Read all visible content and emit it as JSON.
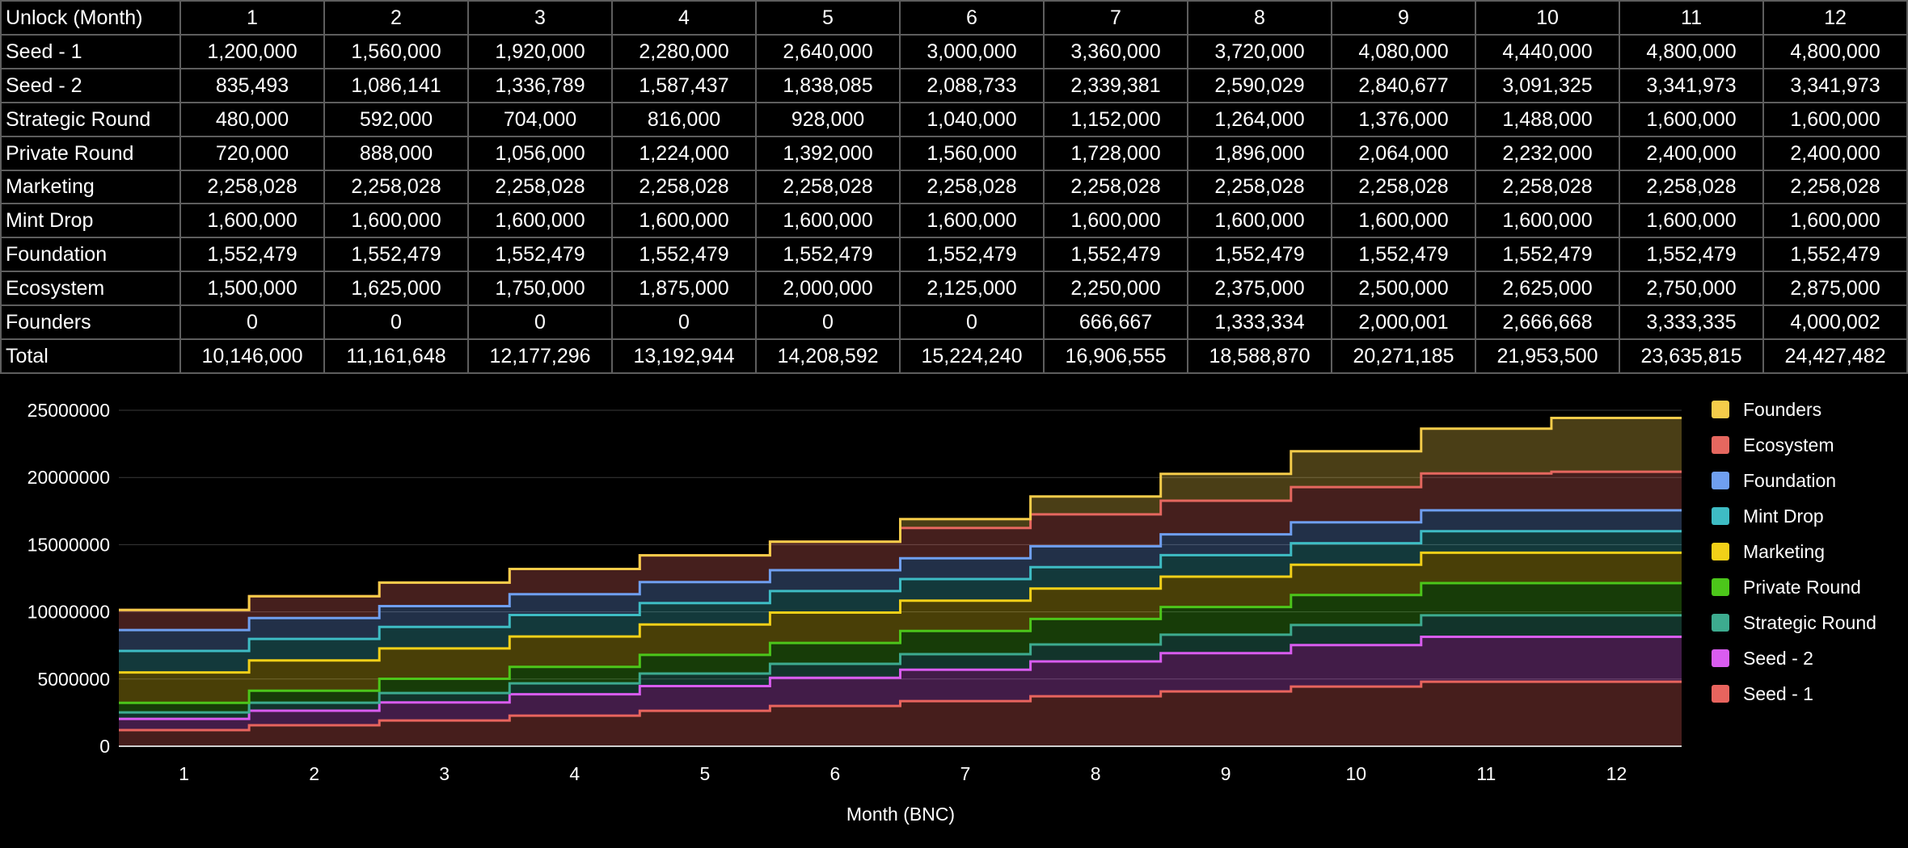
{
  "table": {
    "header_label": "Unlock (Month)",
    "months": [
      "1",
      "2",
      "3",
      "4",
      "5",
      "6",
      "7",
      "8",
      "9",
      "10",
      "11",
      "12"
    ],
    "rows": [
      {
        "label": "Seed - 1",
        "values": [
          "1,200,000",
          "1,560,000",
          "1,920,000",
          "2,280,000",
          "2,640,000",
          "3,000,000",
          "3,360,000",
          "3,720,000",
          "4,080,000",
          "4,440,000",
          "4,800,000",
          "4,800,000"
        ]
      },
      {
        "label": "Seed - 2",
        "values": [
          "835,493",
          "1,086,141",
          "1,336,789",
          "1,587,437",
          "1,838,085",
          "2,088,733",
          "2,339,381",
          "2,590,029",
          "2,840,677",
          "3,091,325",
          "3,341,973",
          "3,341,973"
        ]
      },
      {
        "label": "Strategic Round",
        "values": [
          "480,000",
          "592,000",
          "704,000",
          "816,000",
          "928,000",
          "1,040,000",
          "1,152,000",
          "1,264,000",
          "1,376,000",
          "1,488,000",
          "1,600,000",
          "1,600,000"
        ]
      },
      {
        "label": "Private Round",
        "values": [
          "720,000",
          "888,000",
          "1,056,000",
          "1,224,000",
          "1,392,000",
          "1,560,000",
          "1,728,000",
          "1,896,000",
          "2,064,000",
          "2,232,000",
          "2,400,000",
          "2,400,000"
        ]
      },
      {
        "label": "Marketing",
        "values": [
          "2,258,028",
          "2,258,028",
          "2,258,028",
          "2,258,028",
          "2,258,028",
          "2,258,028",
          "2,258,028",
          "2,258,028",
          "2,258,028",
          "2,258,028",
          "2,258,028",
          "2,258,028"
        ]
      },
      {
        "label": "Mint Drop",
        "values": [
          "1,600,000",
          "1,600,000",
          "1,600,000",
          "1,600,000",
          "1,600,000",
          "1,600,000",
          "1,600,000",
          "1,600,000",
          "1,600,000",
          "1,600,000",
          "1,600,000",
          "1,600,000"
        ]
      },
      {
        "label": "Foundation",
        "values": [
          "1,552,479",
          "1,552,479",
          "1,552,479",
          "1,552,479",
          "1,552,479",
          "1,552,479",
          "1,552,479",
          "1,552,479",
          "1,552,479",
          "1,552,479",
          "1,552,479",
          "1,552,479"
        ]
      },
      {
        "label": "Ecosystem",
        "values": [
          "1,500,000",
          "1,625,000",
          "1,750,000",
          "1,875,000",
          "2,000,000",
          "2,125,000",
          "2,250,000",
          "2,375,000",
          "2,500,000",
          "2,625,000",
          "2,750,000",
          "2,875,000"
        ]
      },
      {
        "label": "Founders",
        "values": [
          "0",
          "0",
          "0",
          "0",
          "0",
          "0",
          "666,667",
          "1,333,334",
          "2,000,001",
          "2,666,668",
          "3,333,335",
          "4,000,002"
        ]
      },
      {
        "label": "Total",
        "values": [
          "10,146,000",
          "11,161,648",
          "12,177,296",
          "13,192,944",
          "14,208,592",
          "15,224,240",
          "16,906,555",
          "18,588,870",
          "20,271,185",
          "21,953,500",
          "23,635,815",
          "24,427,482"
        ]
      }
    ]
  },
  "chart_data": {
    "type": "area",
    "stacked": true,
    "stepped": true,
    "x": [
      1,
      2,
      3,
      4,
      5,
      6,
      7,
      8,
      9,
      10,
      11,
      12
    ],
    "xlabel": "Month (BNC)",
    "ylabel": "",
    "ylim": [
      0,
      25000000
    ],
    "yticks": [
      0,
      5000000,
      10000000,
      15000000,
      20000000,
      25000000
    ],
    "grid": true,
    "legend_position": "right",
    "series": [
      {
        "name": "Seed - 1",
        "color": "#e8645e",
        "values": [
          1200000,
          1560000,
          1920000,
          2280000,
          2640000,
          3000000,
          3360000,
          3720000,
          4080000,
          4440000,
          4800000,
          4800000
        ]
      },
      {
        "name": "Seed - 2",
        "color": "#d95cf0",
        "values": [
          835493,
          1086141,
          1336789,
          1587437,
          1838085,
          2088733,
          2339381,
          2590029,
          2840677,
          3091325,
          3341973,
          3341973
        ]
      },
      {
        "name": "Strategic Round",
        "color": "#3dab8f",
        "values": [
          480000,
          592000,
          704000,
          816000,
          928000,
          1040000,
          1152000,
          1264000,
          1376000,
          1488000,
          1600000,
          1600000
        ]
      },
      {
        "name": "Private Round",
        "color": "#4cc61a",
        "values": [
          720000,
          888000,
          1056000,
          1224000,
          1392000,
          1560000,
          1728000,
          1896000,
          2064000,
          2232000,
          2400000,
          2400000
        ]
      },
      {
        "name": "Marketing",
        "color": "#f2d018",
        "values": [
          2258028,
          2258028,
          2258028,
          2258028,
          2258028,
          2258028,
          2258028,
          2258028,
          2258028,
          2258028,
          2258028,
          2258028
        ]
      },
      {
        "name": "Mint Drop",
        "color": "#3ebcc4",
        "values": [
          1600000,
          1600000,
          1600000,
          1600000,
          1600000,
          1600000,
          1600000,
          1600000,
          1600000,
          1600000,
          1600000,
          1600000
        ]
      },
      {
        "name": "Foundation",
        "color": "#6f9ff0",
        "values": [
          1552479,
          1552479,
          1552479,
          1552479,
          1552479,
          1552479,
          1552479,
          1552479,
          1552479,
          1552479,
          1552479,
          1552479
        ]
      },
      {
        "name": "Ecosystem",
        "color": "#e5675f",
        "values": [
          1500000,
          1625000,
          1750000,
          1875000,
          2000000,
          2125000,
          2250000,
          2375000,
          2500000,
          2625000,
          2750000,
          2875000
        ]
      },
      {
        "name": "Founders",
        "color": "#f5cc4a",
        "values": [
          0,
          0,
          0,
          0,
          0,
          0,
          666667,
          1333334,
          2000001,
          2666668,
          3333335,
          4000002
        ]
      }
    ]
  }
}
